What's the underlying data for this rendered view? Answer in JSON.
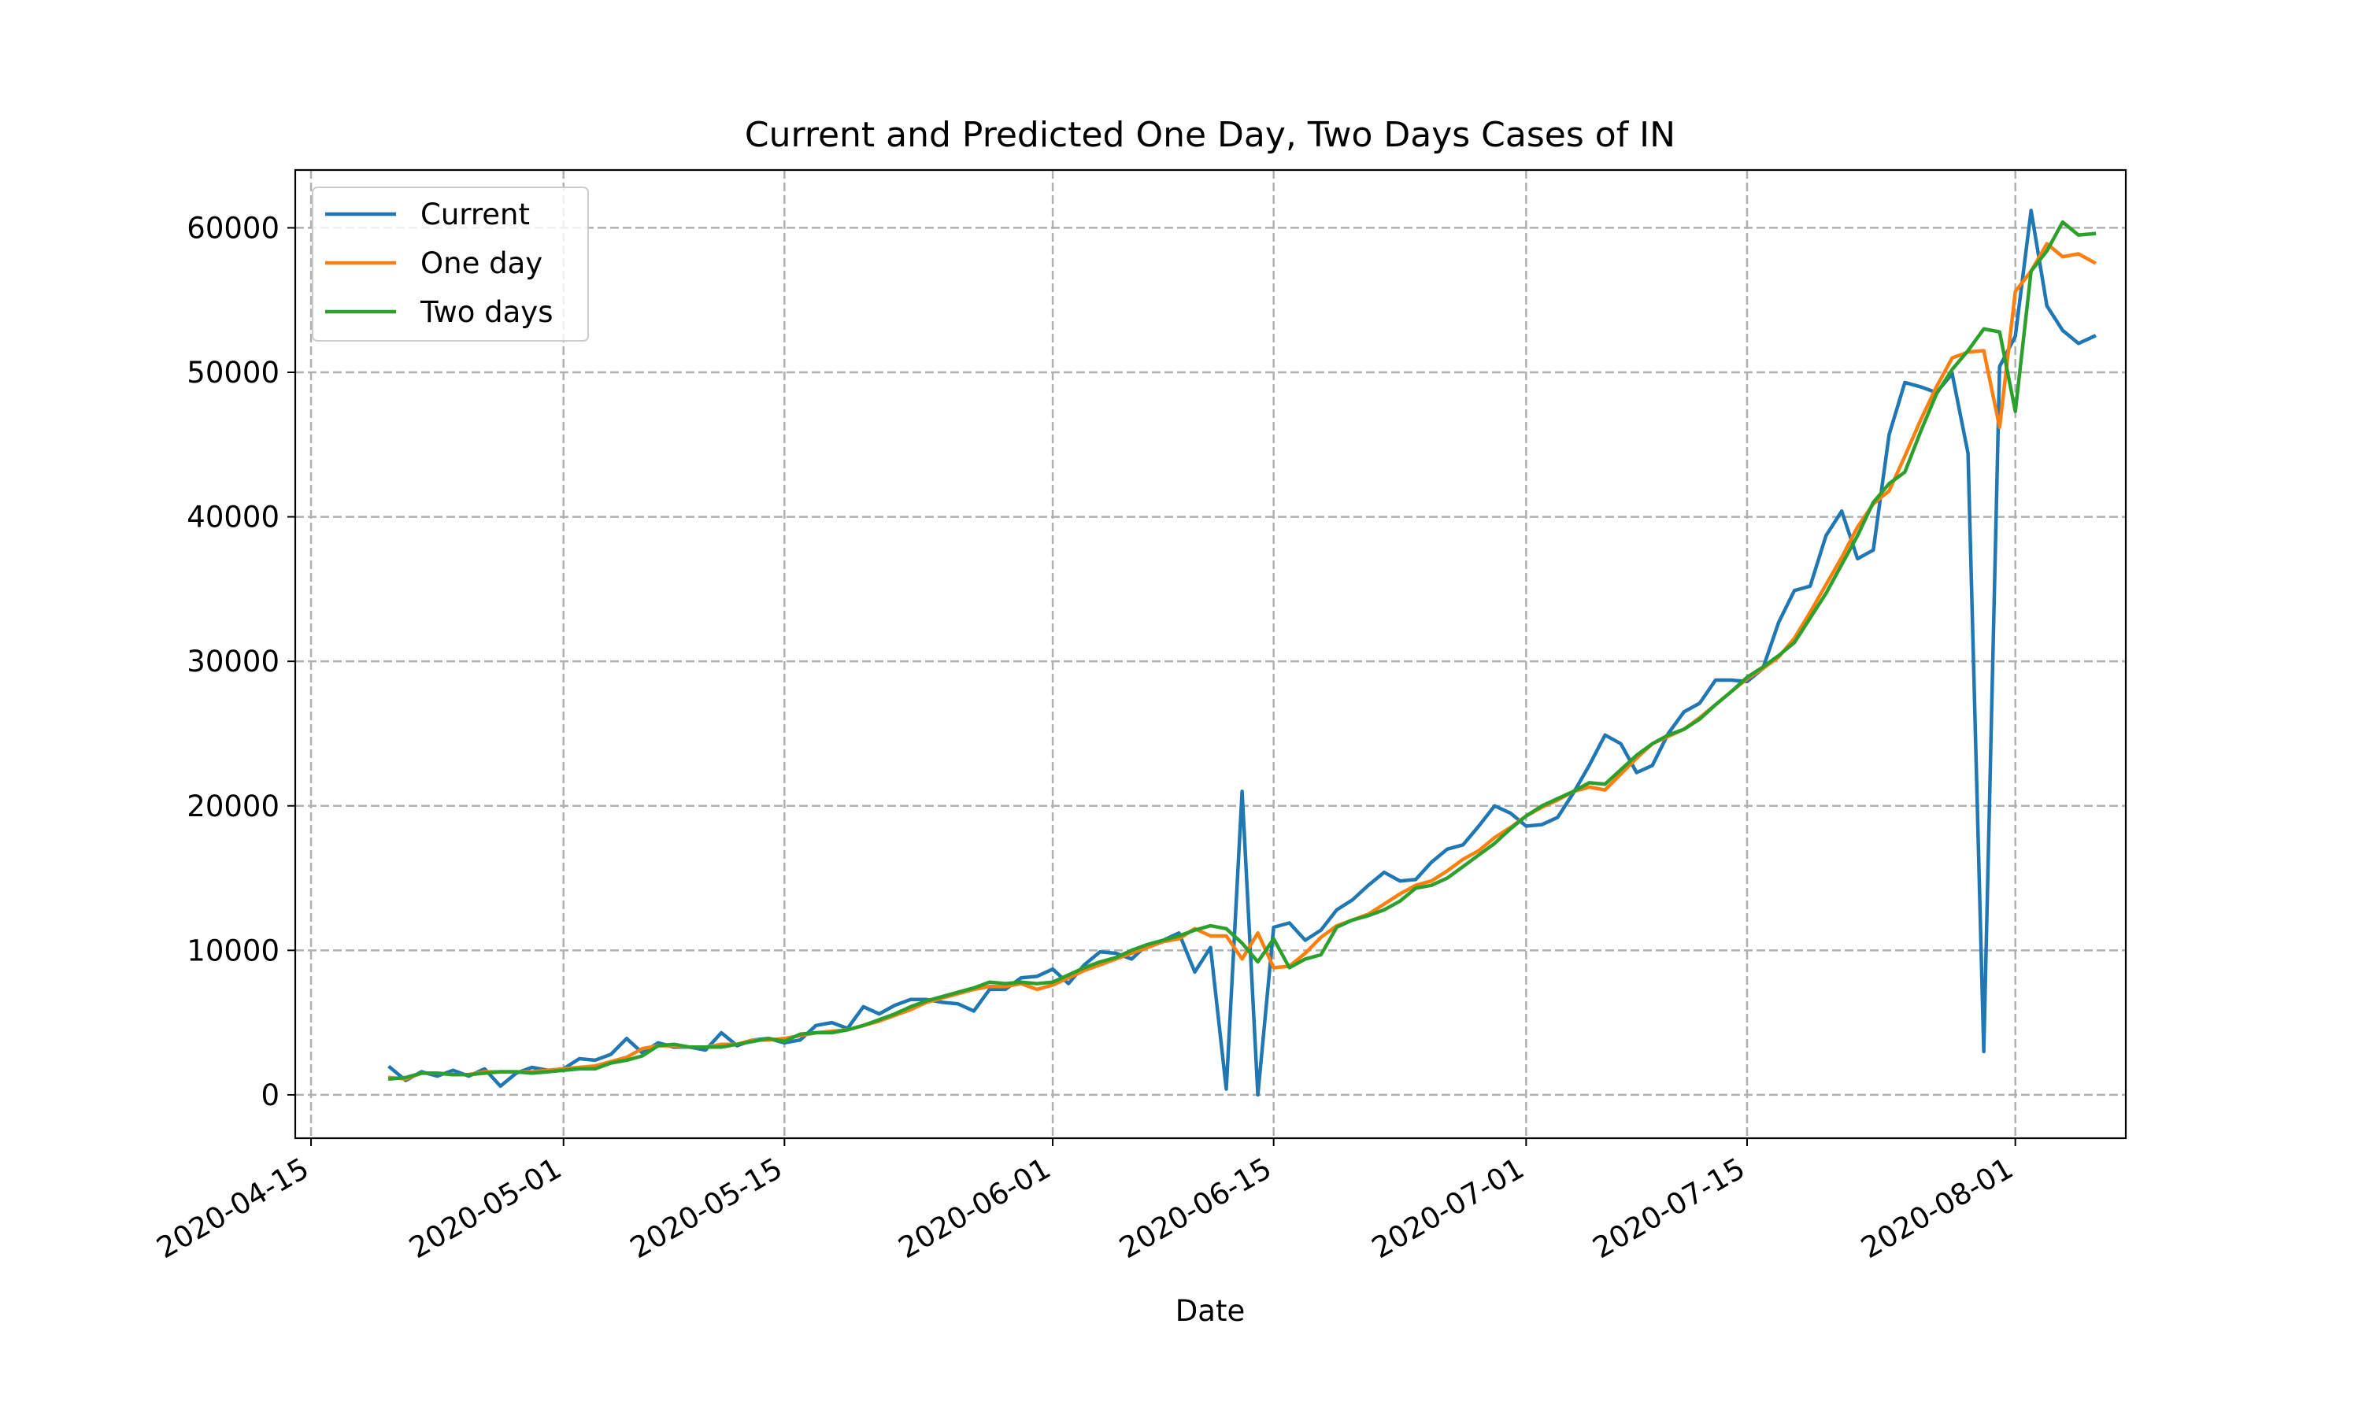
{
  "chart_data": {
    "type": "line",
    "title": "Current and Predicted One Day, Two Days Cases of IN",
    "xlabel": "Date",
    "ylabel": "",
    "x_start": "2020-04-20",
    "xlim": [
      "2020-04-14",
      "2020-08-08"
    ],
    "ylim": [
      -3000,
      64000
    ],
    "xticks": [
      "2020-04-15",
      "2020-05-01",
      "2020-05-15",
      "2020-06-01",
      "2020-06-15",
      "2020-07-01",
      "2020-07-15",
      "2020-08-01"
    ],
    "yticks": [
      0,
      10000,
      20000,
      30000,
      40000,
      50000,
      60000
    ],
    "grid": true,
    "legend_loc": "upper left",
    "series": [
      {
        "name": "Current",
        "color": "#1f77b4",
        "values": [
          1900,
          1000,
          1600,
          1300,
          1700,
          1300,
          1800,
          600,
          1500,
          1900,
          1700,
          1800,
          2500,
          2400,
          2800,
          3900,
          2900,
          3600,
          3300,
          3300,
          3100,
          4300,
          3400,
          3800,
          3900,
          3600,
          3800,
          4800,
          5000,
          4600,
          6100,
          5600,
          6200,
          6600,
          6600,
          6400,
          6300,
          5800,
          7300,
          7300,
          8100,
          8200,
          8700,
          7700,
          9000,
          9900,
          9800,
          9400,
          10400,
          10700,
          11200,
          8500,
          10200,
          400,
          21000,
          0,
          11600,
          11900,
          10700,
          11400,
          12800,
          13500,
          14500,
          15400,
          14800,
          14900,
          16100,
          17000,
          17300,
          18600,
          20000,
          19500,
          18600,
          18700,
          19200,
          20900,
          22800,
          24900,
          24300,
          22300,
          22800,
          25000,
          26500,
          27100,
          28700,
          28700,
          28600,
          29500,
          32700,
          34900,
          35200,
          38700,
          40400,
          37100,
          37700,
          45700,
          49300,
          49000,
          48600,
          49900,
          44400,
          3000,
          50400,
          52500,
          61200,
          54600,
          52900,
          52000,
          52500
        ]
      },
      {
        "name": "One day",
        "color": "#ff7f0e",
        "values": [
          1200,
          1100,
          1500,
          1500,
          1400,
          1400,
          1600,
          1600,
          1600,
          1600,
          1700,
          1800,
          1900,
          2000,
          2300,
          2600,
          3200,
          3400,
          3400,
          3300,
          3300,
          3500,
          3500,
          3800,
          3800,
          3900,
          4100,
          4300,
          4400,
          4500,
          4800,
          5100,
          5500,
          5900,
          6400,
          6700,
          7000,
          7300,
          7500,
          7500,
          7700,
          7300,
          7600,
          8100,
          8600,
          9000,
          9400,
          9800,
          10200,
          10600,
          10800,
          11500,
          11000,
          11000,
          9400,
          11200,
          8800,
          8900,
          9800,
          10900,
          11700,
          12100,
          12500,
          13200,
          13900,
          14500,
          14800,
          15500,
          16300,
          16900,
          17800,
          18500,
          19300,
          19900,
          20400,
          21000,
          21300,
          21100,
          22200,
          23300,
          24300,
          24800,
          25300,
          26100,
          27000,
          27900,
          28800,
          29500,
          30300,
          31600,
          33400,
          35300,
          37200,
          39300,
          40900,
          41800,
          44200,
          46700,
          49000,
          51000,
          51400,
          51500,
          46200,
          55600,
          57000,
          58900,
          58000,
          58200,
          57600
        ]
      },
      {
        "name": "Two days",
        "color": "#2ca02c",
        "values": [
          1100,
          1200,
          1500,
          1500,
          1400,
          1400,
          1500,
          1600,
          1600,
          1500,
          1600,
          1700,
          1800,
          1800,
          2200,
          2400,
          2700,
          3400,
          3500,
          3300,
          3300,
          3300,
          3500,
          3700,
          3900,
          3700,
          4200,
          4300,
          4300,
          4500,
          4800,
          5200,
          5600,
          6100,
          6500,
          6800,
          7100,
          7400,
          7800,
          7700,
          7800,
          7700,
          7800,
          8300,
          8800,
          9200,
          9500,
          10000,
          10400,
          10700,
          11000,
          11400,
          11700,
          11500,
          10500,
          9200,
          10800,
          8800,
          9400,
          9700,
          11600,
          12100,
          12400,
          12800,
          13400,
          14300,
          14500,
          15000,
          15800,
          16600,
          17400,
          18400,
          19300,
          20000,
          20500,
          21000,
          21600,
          21500,
          22500,
          23500,
          24300,
          24900,
          25300,
          26000,
          27000,
          27900,
          28900,
          29600,
          30400,
          31300,
          33000,
          34700,
          36700,
          38700,
          41000,
          42300,
          43100,
          45900,
          48500,
          50200,
          51500,
          53000,
          52800,
          47300,
          57000,
          58400,
          60400,
          59500,
          59600
        ]
      }
    ]
  }
}
